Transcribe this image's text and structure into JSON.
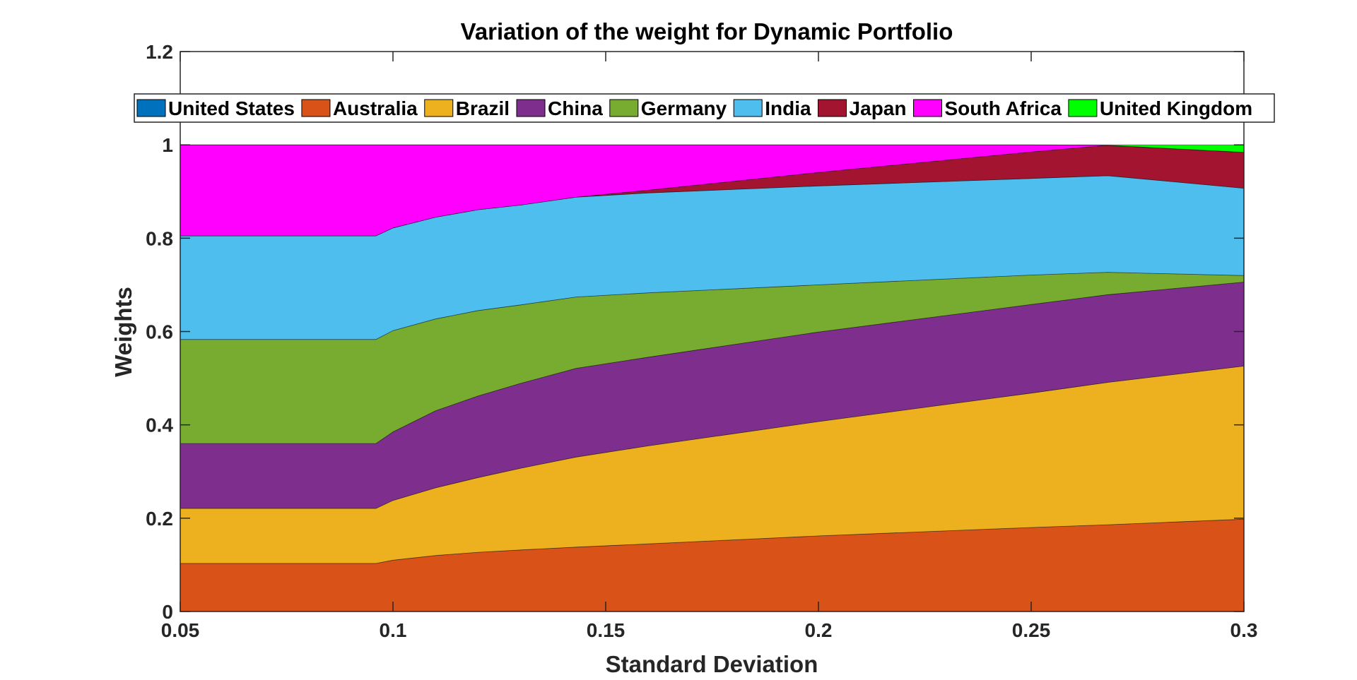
{
  "chart_data": {
    "type": "area",
    "title": "Variation of the weight for Dynamic Portfolio",
    "xlabel": "Standard Deviation",
    "ylabel": "Weights",
    "xlim": [
      0.05,
      0.3
    ],
    "ylim": [
      0,
      1.2
    ],
    "xticks": [
      "0.05",
      "0.1",
      "0.15",
      "0.2",
      "0.25",
      "0.3"
    ],
    "yticks": [
      "0",
      "0.2",
      "0.4",
      "0.6",
      "0.8",
      "1",
      "1.2"
    ],
    "grid": false,
    "legend_position": "top",
    "legend_orientation": "horizontal",
    "x": [
      0.05,
      0.096,
      0.1,
      0.11,
      0.12,
      0.13,
      0.143,
      0.16,
      0.2,
      0.25,
      0.268,
      0.3
    ],
    "series": [
      {
        "name": "United States",
        "color": "#0072BD",
        "values": [
          0,
          0,
          0,
          0,
          0,
          0,
          0,
          0,
          0,
          0,
          0,
          0
        ]
      },
      {
        "name": "Australia",
        "color": "#D95319",
        "values": [
          0.103,
          0.103,
          0.11,
          0.12,
          0.127,
          0.132,
          0.138,
          0.145,
          0.162,
          0.18,
          0.186,
          0.198
        ]
      },
      {
        "name": "Brazil",
        "color": "#EDB120",
        "values": [
          0.118,
          0.118,
          0.128,
          0.145,
          0.16,
          0.175,
          0.193,
          0.21,
          0.245,
          0.288,
          0.305,
          0.328
        ]
      },
      {
        "name": "China",
        "color": "#7E2F8E",
        "values": [
          0.139,
          0.139,
          0.147,
          0.165,
          0.175,
          0.182,
          0.19,
          0.19,
          0.192,
          0.19,
          0.188,
          0.18
        ]
      },
      {
        "name": "Germany",
        "color": "#77AC30",
        "values": [
          0.223,
          0.223,
          0.217,
          0.197,
          0.183,
          0.168,
          0.153,
          0.138,
          0.101,
          0.063,
          0.048,
          0.014
        ]
      },
      {
        "name": "India",
        "color": "#4DBEEE",
        "values": [
          0.222,
          0.222,
          0.22,
          0.218,
          0.216,
          0.214,
          0.214,
          0.214,
          0.212,
          0.207,
          0.207,
          0.187
        ]
      },
      {
        "name": "Japan",
        "color": "#A2142F",
        "values": [
          0,
          0,
          0,
          0,
          0,
          0,
          0,
          0.006,
          0.029,
          0.057,
          0.065,
          0.077
        ]
      },
      {
        "name": "South Africa",
        "color": "#FF00FF",
        "values": [
          0.195,
          0.195,
          0.178,
          0.155,
          0.139,
          0.129,
          0.112,
          0.097,
          0.059,
          0.015,
          0,
          0
        ]
      },
      {
        "name": "United Kingdom",
        "color": "#00FF00",
        "values": [
          0,
          0,
          0,
          0,
          0,
          0,
          0,
          0,
          0,
          0,
          0.001,
          0.016
        ]
      }
    ]
  }
}
